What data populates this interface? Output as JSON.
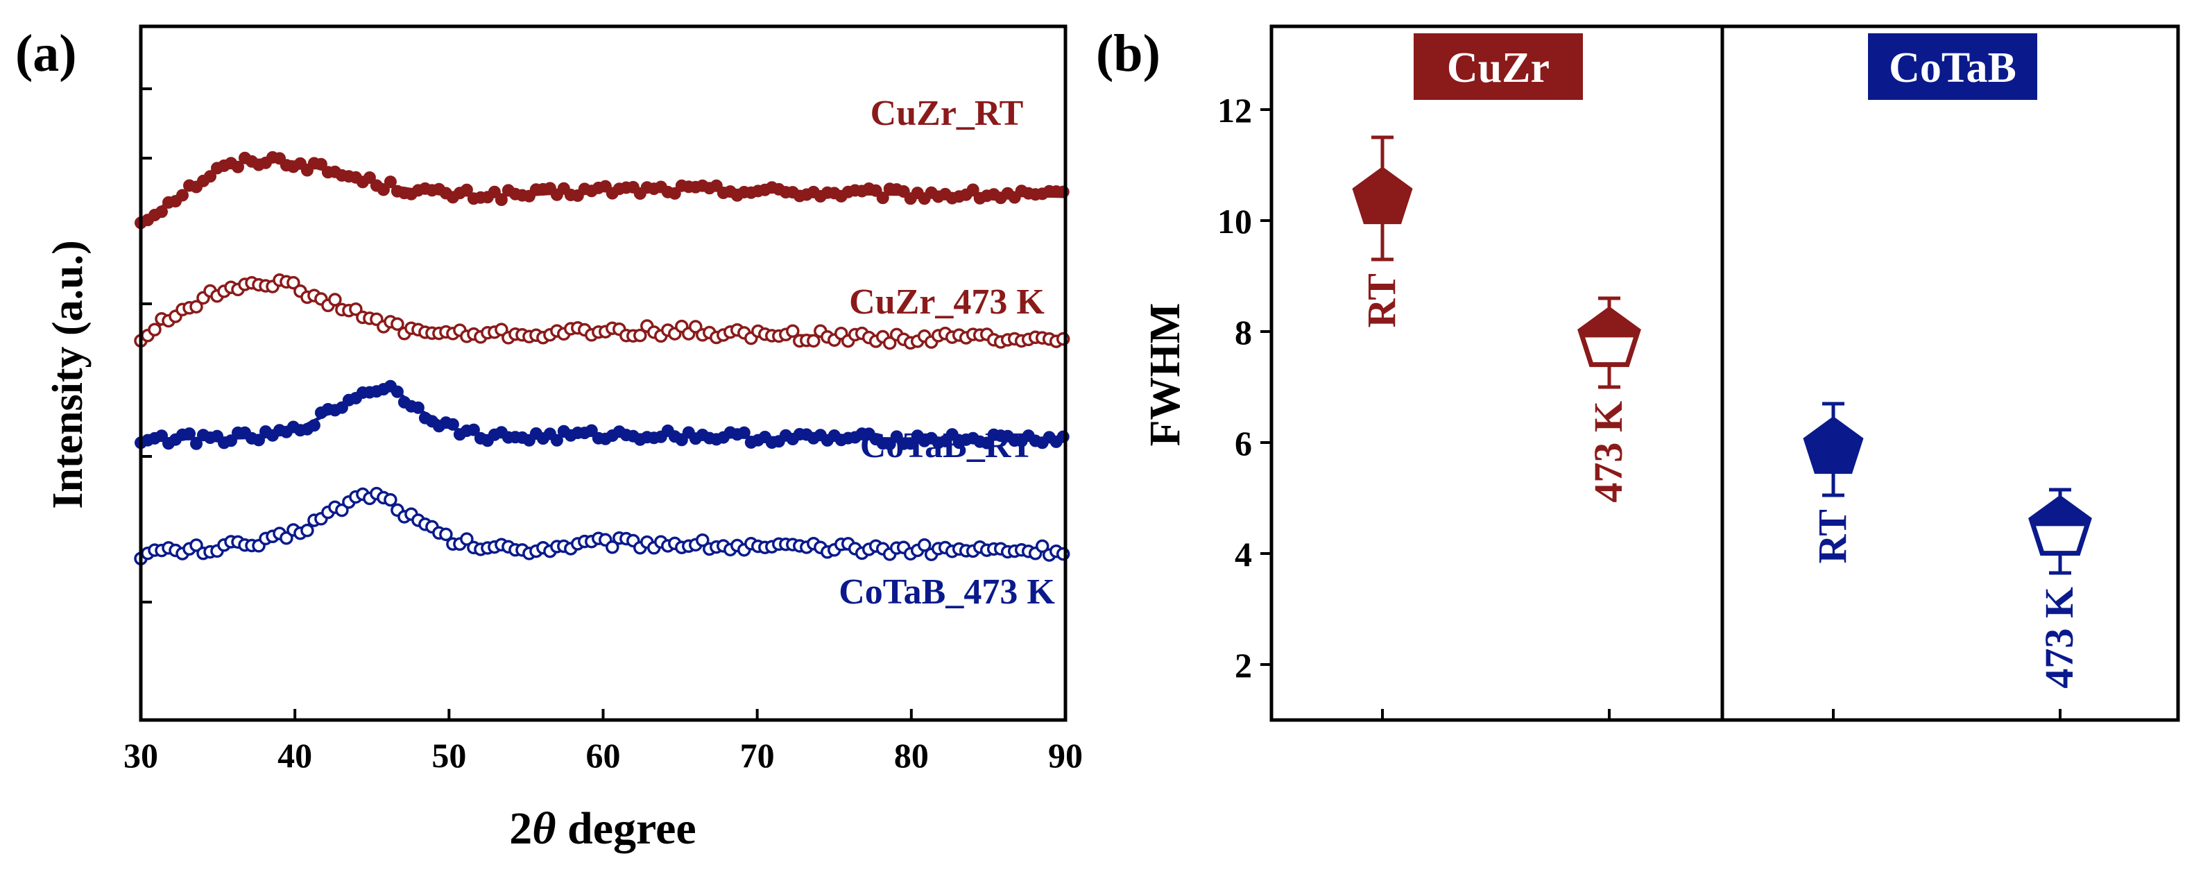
{
  "chart_data": [
    {
      "panel_label": "(a)",
      "type": "line",
      "title": "",
      "xlabel": "2θ degree",
      "xlabel_prefix": "2",
      "xlabel_theta": "θ",
      "xlabel_suffix": " degree",
      "ylabel": "Intensity (a.u.)",
      "xlim": [
        30,
        90
      ],
      "ylim": [
        0,
        100
      ],
      "x_ticks": [
        30,
        40,
        50,
        60,
        70,
        80,
        90
      ],
      "x_tick_labels": [
        "30",
        "40",
        "50",
        "60",
        "70",
        "80",
        "90"
      ],
      "y_ticks_unlabeled": [
        17,
        38,
        60,
        81,
        91
      ],
      "grid": false,
      "series": [
        {
          "name": "CuZr_RT",
          "label": "CuZr_RT",
          "color": "#8b1a1a",
          "marker": "filled",
          "x": [
            30,
            33,
            35,
            37,
            38.5,
            40,
            42,
            44,
            46,
            48,
            50,
            55,
            60,
            65,
            70,
            75,
            80,
            85,
            90
          ],
          "y": [
            71.8,
            76.5,
            79.3,
            80.6,
            80.8,
            80.4,
            79.3,
            78.1,
            77.0,
            76.3,
            75.7,
            75.7,
            76.4,
            76.5,
            76.3,
            75.9,
            75.8,
            75.7,
            75.5
          ]
        },
        {
          "name": "CuZr_473 K",
          "label": "CuZr_473 K",
          "color": "#8b1a1a",
          "marker": "open",
          "x": [
            30,
            32,
            34,
            36,
            37.5,
            39,
            41,
            43,
            45,
            47,
            50,
            55,
            60,
            65,
            70,
            75,
            80,
            85,
            90
          ],
          "y": [
            55.0,
            58.2,
            60.7,
            62.5,
            63.3,
            63.0,
            61.5,
            59.5,
            57.6,
            56.4,
            55.6,
            55.6,
            56.0,
            56.1,
            55.5,
            55.3,
            55.0,
            55.2,
            55.2
          ]
        },
        {
          "name": "CoTaB_RT",
          "label": "CoTaB_RT",
          "color": "#0a1a8c",
          "marker": "filled",
          "x": [
            30,
            35,
            38,
            40,
            42,
            44,
            45.5,
            46.5,
            48,
            50,
            52,
            55,
            60,
            65,
            70,
            75,
            80,
            85,
            90
          ],
          "y": [
            40.5,
            40.6,
            40.8,
            41.7,
            44.0,
            46.8,
            48.0,
            47.6,
            44.8,
            42.2,
            41.0,
            40.8,
            41.1,
            41.1,
            40.7,
            40.6,
            40.5,
            40.5,
            40.5
          ]
        },
        {
          "name": "CoTaB_473 K",
          "label": "CoTaB_473 K",
          "color": "#0a1a8c",
          "marker": "open",
          "x": [
            30,
            35,
            38,
            40,
            42,
            44,
            45,
            46,
            48,
            50,
            52,
            55,
            60,
            65,
            70,
            75,
            80,
            85,
            90
          ],
          "y": [
            24.0,
            24.8,
            25.5,
            27.0,
            29.5,
            32.0,
            32.7,
            31.8,
            28.5,
            26.0,
            25.0,
            24.6,
            25.6,
            25.5,
            24.8,
            24.7,
            24.6,
            24.5,
            24.5
          ]
        }
      ]
    },
    {
      "panel_label": "(b)",
      "type": "scatter",
      "title": "",
      "xlabel": "",
      "ylabel": "FWHM",
      "ylim": [
        1,
        13.5
      ],
      "y_ticks": [
        2,
        4,
        6,
        8,
        10,
        12
      ],
      "y_tick_labels": [
        "2",
        "4",
        "6",
        "8",
        "10",
        "12"
      ],
      "grid": false,
      "groups": [
        {
          "label": "CuZr",
          "color": "#8b1a1a"
        },
        {
          "label": "CoTaB",
          "color": "#0a1a8c"
        }
      ],
      "points": [
        {
          "group": "CuZr",
          "label": "RT",
          "value": 10.4,
          "err_low": 9.3,
          "err_high": 11.5,
          "marker": "filled",
          "color": "#8b1a1a"
        },
        {
          "group": "CuZr",
          "label": "473 K",
          "value": 7.85,
          "err_low": 7.0,
          "err_high": 8.6,
          "marker": "half",
          "color": "#8b1a1a"
        },
        {
          "group": "CoTaB",
          "label": "RT",
          "value": 5.9,
          "err_low": 5.05,
          "err_high": 6.7,
          "marker": "filled",
          "color": "#0a1a8c"
        },
        {
          "group": "CoTaB",
          "label": "473 K",
          "value": 4.45,
          "err_low": 3.65,
          "err_high": 5.15,
          "marker": "half",
          "color": "#0a1a8c"
        }
      ]
    }
  ]
}
